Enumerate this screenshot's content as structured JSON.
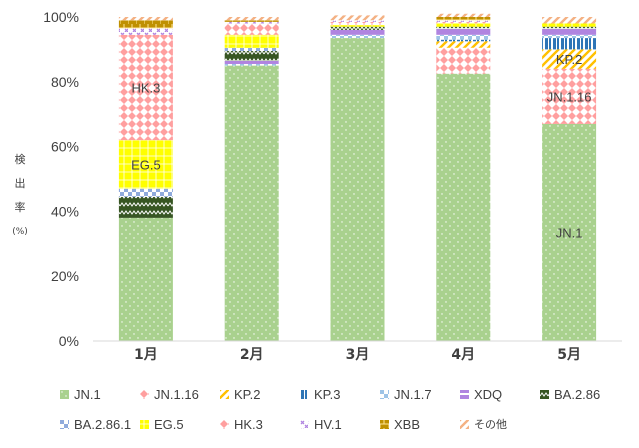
{
  "chart_data": {
    "type": "stacked-bar",
    "title": "",
    "xlabel": "",
    "ylabel": [
      "検",
      "出",
      "率",
      "(%)"
    ],
    "ylim": [
      0,
      100
    ],
    "yticks": [
      "0%",
      "20%",
      "40%",
      "60%",
      "80%",
      "100%"
    ],
    "categories": [
      "1月",
      "2月",
      "3月",
      "4月",
      "5月"
    ],
    "series": [
      {
        "name": "JN.1",
        "color": "#a9d18e",
        "pattern": "dots",
        "values": [
          38,
          85,
          93.5,
          82.5,
          67
        ]
      },
      {
        "name": "JN.1.16",
        "color": "#ff9f9f",
        "pattern": "diamond",
        "values": [
          0,
          0,
          0,
          8,
          17
        ]
      },
      {
        "name": "KP.2",
        "color": "#ffc000",
        "pattern": "diag",
        "values": [
          0,
          0,
          0,
          2,
          6
        ]
      },
      {
        "name": "KP.3",
        "color": "#2e75b6",
        "pattern": "vlines",
        "values": [
          0,
          0,
          0,
          0.5,
          3.5
        ]
      },
      {
        "name": "JN.1.7",
        "color": "#9dc3e6",
        "pattern": "checker",
        "values": [
          0,
          0.5,
          1,
          1.5,
          1
        ]
      },
      {
        "name": "XDQ",
        "color": "#b084e0",
        "pattern": "hlines",
        "values": [
          0,
          1,
          1.5,
          2,
          2
        ]
      },
      {
        "name": "BA.2.86",
        "color": "#375623",
        "pattern": "zigzag",
        "values": [
          6.5,
          3,
          1,
          0.5,
          0.5
        ]
      },
      {
        "name": "BA.2.86.1",
        "color": "#8faadc",
        "pattern": "checker",
        "values": [
          2.5,
          1,
          0,
          0,
          0
        ]
      },
      {
        "name": "EG.5",
        "color": "#ffff00",
        "pattern": "grid",
        "values": [
          15,
          4,
          0.5,
          1,
          1
        ]
      },
      {
        "name": "HK.3",
        "color": "#ff9f9f",
        "pattern": "diamond",
        "values": [
          32.5,
          3.5,
          1,
          0.5,
          0
        ]
      },
      {
        "name": "HV.1",
        "color": "#b084e0",
        "pattern": "crosses",
        "values": [
          2,
          0.5,
          0.5,
          0.5,
          0
        ]
      },
      {
        "name": "XBB",
        "color": "#bf9000",
        "pattern": "bricks",
        "values": [
          2.5,
          0.5,
          0,
          1,
          0
        ]
      },
      {
        "name": "その他",
        "color": "#f4b183",
        "pattern": "diag",
        "values": [
          1,
          1,
          1.5,
          1,
          2
        ]
      }
    ],
    "segment_labels": [
      {
        "category": "1月",
        "series": "HK.3",
        "text": "HK.3"
      },
      {
        "category": "1月",
        "series": "EG.5",
        "text": "EG.5"
      },
      {
        "category": "5月",
        "series": "KP.2",
        "text": "KP.2"
      },
      {
        "category": "5月",
        "series": "JN.1.16",
        "text": "JN.1.16"
      },
      {
        "category": "5月",
        "series": "JN.1",
        "text": "JN.1"
      }
    ],
    "grid": false,
    "legend_position": "bottom"
  }
}
